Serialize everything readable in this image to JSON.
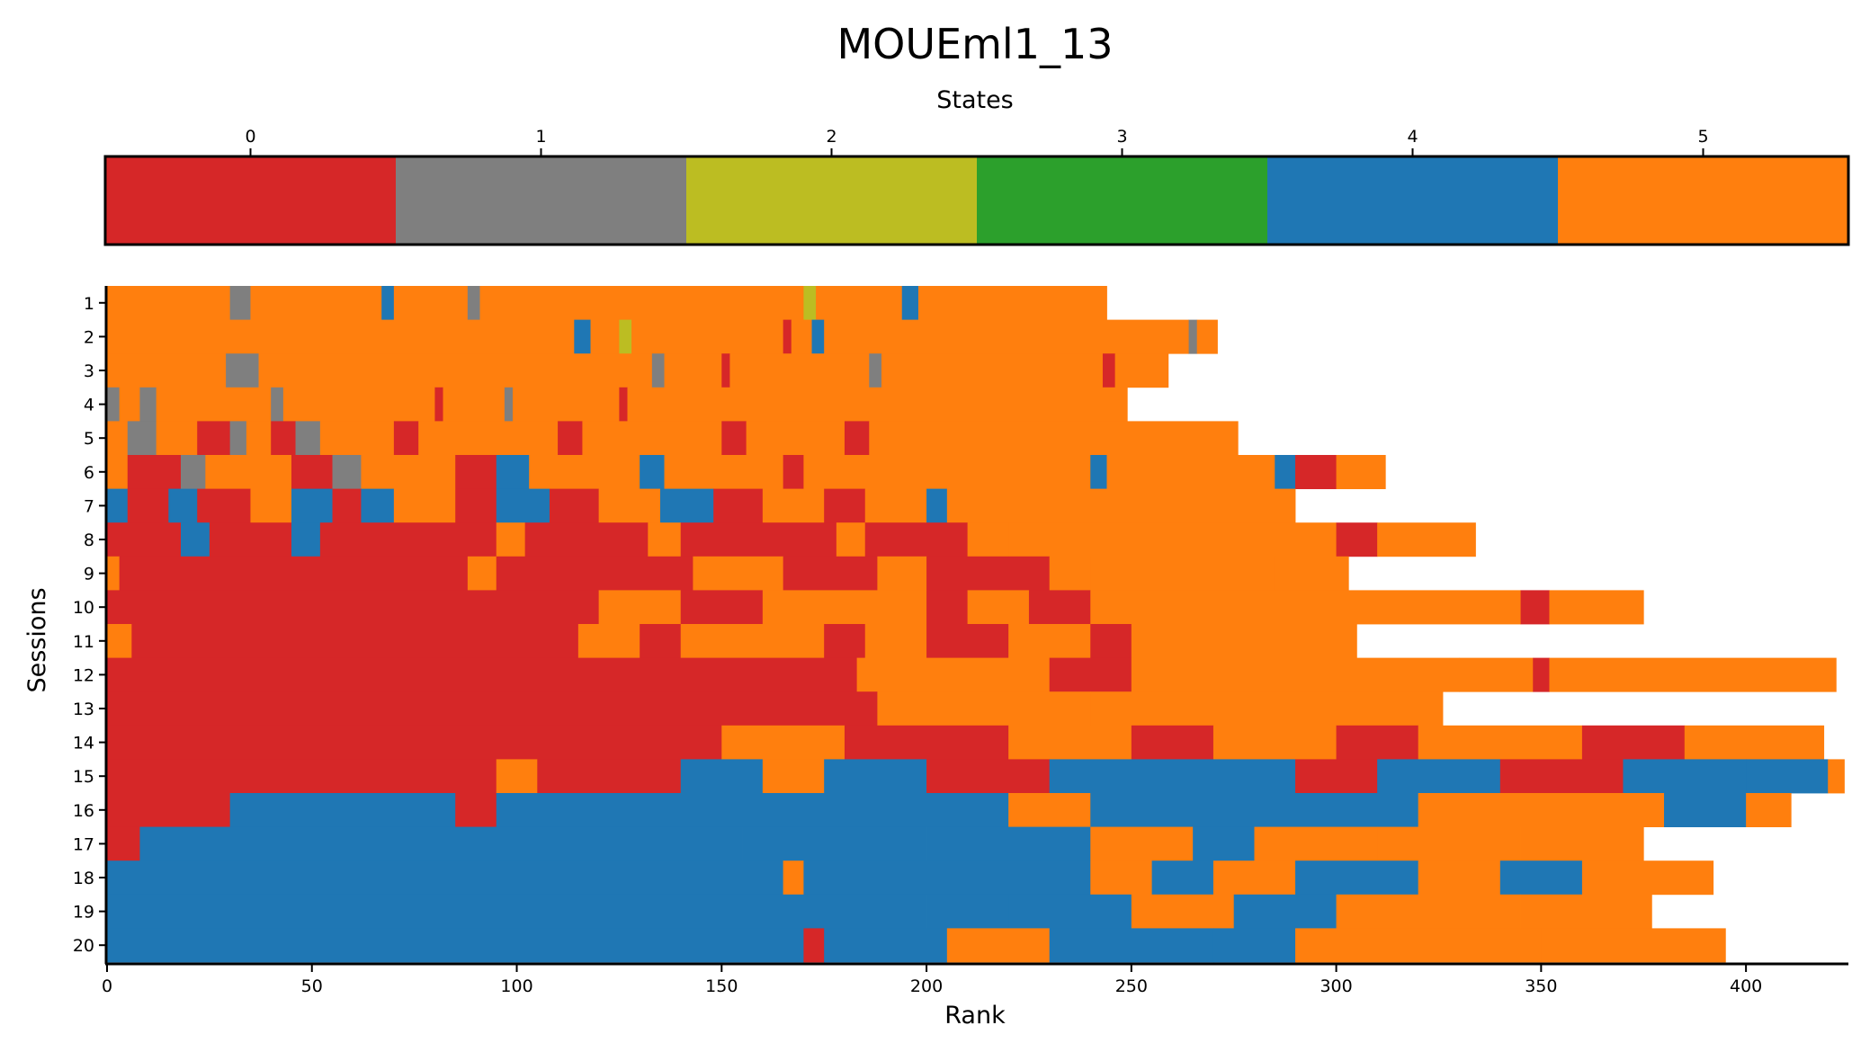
{
  "chart_data": {
    "type": "heatmap",
    "title": "MOUEml1_13",
    "xlabel": "Rank",
    "ylabel": "Sessions",
    "colorbar_label": "States",
    "xlim": [
      0,
      425
    ],
    "x_ticks": [
      0,
      50,
      100,
      150,
      200,
      250,
      300,
      350,
      400
    ],
    "states": [
      {
        "state": "0",
        "color": "#d62728"
      },
      {
        "state": "1",
        "color": "#7f7f7f"
      },
      {
        "state": "2",
        "color": "#bcbd22"
      },
      {
        "state": "3",
        "color": "#2ca02c"
      },
      {
        "state": "4",
        "color": "#1f77b4"
      },
      {
        "state": "5",
        "color": "#ff7f0e"
      }
    ],
    "sessions": [
      {
        "label": "1",
        "length": 244,
        "segments": [
          [
            0,
            30,
            5
          ],
          [
            30,
            35,
            1
          ],
          [
            35,
            67,
            5
          ],
          [
            67,
            70,
            4
          ],
          [
            70,
            88,
            5
          ],
          [
            88,
            91,
            1
          ],
          [
            91,
            170,
            5
          ],
          [
            170,
            173,
            2
          ],
          [
            173,
            194,
            5
          ],
          [
            194,
            198,
            4
          ],
          [
            198,
            244,
            5
          ]
        ]
      },
      {
        "label": "2",
        "length": 271,
        "segments": [
          [
            0,
            114,
            5
          ],
          [
            114,
            118,
            4
          ],
          [
            118,
            125,
            5
          ],
          [
            125,
            128,
            2
          ],
          [
            128,
            165,
            5
          ],
          [
            165,
            167,
            0
          ],
          [
            167,
            172,
            5
          ],
          [
            172,
            175,
            4
          ],
          [
            175,
            264,
            5
          ],
          [
            264,
            266,
            1
          ],
          [
            266,
            271,
            5
          ]
        ]
      },
      {
        "label": "3",
        "length": 259,
        "segments": [
          [
            0,
            29,
            5
          ],
          [
            29,
            37,
            1
          ],
          [
            37,
            133,
            5
          ],
          [
            133,
            136,
            1
          ],
          [
            136,
            150,
            5
          ],
          [
            150,
            152,
            0
          ],
          [
            152,
            186,
            5
          ],
          [
            186,
            189,
            1
          ],
          [
            189,
            243,
            5
          ],
          [
            243,
            246,
            0
          ],
          [
            246,
            259,
            5
          ]
        ]
      },
      {
        "label": "4",
        "length": 249,
        "segments": [
          [
            0,
            3,
            1
          ],
          [
            3,
            8,
            5
          ],
          [
            8,
            12,
            1
          ],
          [
            12,
            40,
            5
          ],
          [
            40,
            43,
            1
          ],
          [
            43,
            80,
            5
          ],
          [
            80,
            82,
            0
          ],
          [
            82,
            97,
            5
          ],
          [
            97,
            99,
            1
          ],
          [
            99,
            125,
            5
          ],
          [
            125,
            127,
            0
          ],
          [
            127,
            249,
            5
          ]
        ]
      },
      {
        "label": "5",
        "length": 276,
        "segments": [
          [
            0,
            5,
            5
          ],
          [
            5,
            12,
            1
          ],
          [
            12,
            22,
            5
          ],
          [
            22,
            30,
            0
          ],
          [
            30,
            34,
            1
          ],
          [
            34,
            40,
            5
          ],
          [
            40,
            46,
            0
          ],
          [
            46,
            52,
            1
          ],
          [
            52,
            70,
            5
          ],
          [
            70,
            76,
            0
          ],
          [
            76,
            110,
            5
          ],
          [
            110,
            116,
            0
          ],
          [
            116,
            150,
            5
          ],
          [
            150,
            156,
            0
          ],
          [
            156,
            180,
            5
          ],
          [
            180,
            186,
            0
          ],
          [
            186,
            276,
            5
          ]
        ]
      },
      {
        "label": "6",
        "length": 312,
        "segments": [
          [
            0,
            5,
            5
          ],
          [
            5,
            18,
            0
          ],
          [
            18,
            24,
            1
          ],
          [
            24,
            45,
            5
          ],
          [
            45,
            55,
            0
          ],
          [
            55,
            62,
            1
          ],
          [
            62,
            85,
            5
          ],
          [
            85,
            95,
            0
          ],
          [
            95,
            103,
            4
          ],
          [
            103,
            130,
            5
          ],
          [
            130,
            136,
            4
          ],
          [
            136,
            165,
            5
          ],
          [
            165,
            170,
            0
          ],
          [
            170,
            240,
            5
          ],
          [
            240,
            244,
            4
          ],
          [
            244,
            285,
            5
          ],
          [
            285,
            290,
            4
          ],
          [
            290,
            300,
            0
          ],
          [
            300,
            312,
            5
          ]
        ]
      },
      {
        "label": "7",
        "length": 290,
        "segments": [
          [
            0,
            5,
            4
          ],
          [
            5,
            15,
            0
          ],
          [
            15,
            22,
            4
          ],
          [
            22,
            35,
            0
          ],
          [
            35,
            45,
            5
          ],
          [
            45,
            55,
            4
          ],
          [
            55,
            62,
            0
          ],
          [
            62,
            70,
            4
          ],
          [
            70,
            85,
            5
          ],
          [
            85,
            95,
            0
          ],
          [
            95,
            108,
            4
          ],
          [
            108,
            120,
            0
          ],
          [
            120,
            135,
            5
          ],
          [
            135,
            148,
            4
          ],
          [
            148,
            160,
            0
          ],
          [
            160,
            175,
            5
          ],
          [
            175,
            185,
            0
          ],
          [
            185,
            200,
            5
          ],
          [
            200,
            205,
            4
          ],
          [
            205,
            290,
            5
          ]
        ]
      },
      {
        "label": "8",
        "length": 334,
        "segments": [
          [
            0,
            18,
            0
          ],
          [
            18,
            25,
            4
          ],
          [
            25,
            45,
            0
          ],
          [
            45,
            52,
            4
          ],
          [
            52,
            95,
            0
          ],
          [
            95,
            102,
            5
          ],
          [
            102,
            132,
            0
          ],
          [
            132,
            140,
            5
          ],
          [
            140,
            178,
            0
          ],
          [
            178,
            185,
            5
          ],
          [
            185,
            210,
            0
          ],
          [
            210,
            220,
            5
          ],
          [
            220,
            300,
            5
          ],
          [
            300,
            310,
            0
          ],
          [
            310,
            334,
            5
          ]
        ]
      },
      {
        "label": "9",
        "length": 303,
        "segments": [
          [
            0,
            3,
            5
          ],
          [
            3,
            88,
            0
          ],
          [
            88,
            95,
            5
          ],
          [
            95,
            143,
            0
          ],
          [
            143,
            165,
            5
          ],
          [
            165,
            188,
            0
          ],
          [
            188,
            200,
            5
          ],
          [
            200,
            230,
            0
          ],
          [
            230,
            240,
            5
          ],
          [
            240,
            285,
            5
          ],
          [
            285,
            303,
            5
          ]
        ]
      },
      {
        "label": "10",
        "length": 375,
        "segments": [
          [
            0,
            120,
            0
          ],
          [
            120,
            140,
            5
          ],
          [
            140,
            160,
            0
          ],
          [
            160,
            200,
            5
          ],
          [
            200,
            210,
            0
          ],
          [
            210,
            225,
            5
          ],
          [
            225,
            240,
            0
          ],
          [
            240,
            345,
            5
          ],
          [
            345,
            352,
            0
          ],
          [
            352,
            375,
            5
          ]
        ]
      },
      {
        "label": "11",
        "length": 305,
        "segments": [
          [
            0,
            6,
            5
          ],
          [
            6,
            115,
            0
          ],
          [
            115,
            130,
            5
          ],
          [
            130,
            140,
            0
          ],
          [
            140,
            175,
            5
          ],
          [
            175,
            185,
            0
          ],
          [
            185,
            200,
            5
          ],
          [
            200,
            220,
            0
          ],
          [
            220,
            240,
            5
          ],
          [
            240,
            250,
            0
          ],
          [
            250,
            305,
            5
          ]
        ]
      },
      {
        "label": "12",
        "length": 422,
        "segments": [
          [
            0,
            183,
            0
          ],
          [
            183,
            230,
            5
          ],
          [
            230,
            250,
            0
          ],
          [
            250,
            330,
            5
          ],
          [
            330,
            348,
            5
          ],
          [
            348,
            352,
            0
          ],
          [
            352,
            422,
            5
          ]
        ]
      },
      {
        "label": "13",
        "length": 326,
        "segments": [
          [
            0,
            188,
            0
          ],
          [
            188,
            240,
            5
          ],
          [
            240,
            255,
            5
          ],
          [
            255,
            326,
            5
          ]
        ]
      },
      {
        "label": "14",
        "length": 419,
        "segments": [
          [
            0,
            150,
            0
          ],
          [
            150,
            180,
            5
          ],
          [
            180,
            220,
            0
          ],
          [
            220,
            250,
            5
          ],
          [
            250,
            270,
            0
          ],
          [
            270,
            300,
            5
          ],
          [
            300,
            320,
            0
          ],
          [
            320,
            360,
            5
          ],
          [
            360,
            385,
            0
          ],
          [
            385,
            419,
            5
          ]
        ]
      },
      {
        "label": "15",
        "length": 424,
        "segments": [
          [
            0,
            95,
            0
          ],
          [
            95,
            105,
            5
          ],
          [
            105,
            140,
            0
          ],
          [
            140,
            160,
            4
          ],
          [
            160,
            175,
            5
          ],
          [
            175,
            200,
            4
          ],
          [
            200,
            230,
            0
          ],
          [
            230,
            290,
            4
          ],
          [
            290,
            310,
            0
          ],
          [
            310,
            340,
            4
          ],
          [
            340,
            370,
            0
          ],
          [
            370,
            400,
            4
          ],
          [
            400,
            420,
            4
          ],
          [
            420,
            424,
            5
          ]
        ]
      },
      {
        "label": "16",
        "length": 411,
        "segments": [
          [
            0,
            30,
            0
          ],
          [
            30,
            85,
            4
          ],
          [
            85,
            95,
            0
          ],
          [
            95,
            220,
            4
          ],
          [
            220,
            240,
            5
          ],
          [
            240,
            300,
            4
          ],
          [
            300,
            320,
            4
          ],
          [
            320,
            380,
            5
          ],
          [
            380,
            400,
            4
          ],
          [
            400,
            411,
            5
          ]
        ]
      },
      {
        "label": "17",
        "length": 375,
        "segments": [
          [
            0,
            8,
            0
          ],
          [
            8,
            155,
            4
          ],
          [
            155,
            200,
            4
          ],
          [
            200,
            240,
            4
          ],
          [
            240,
            265,
            5
          ],
          [
            265,
            280,
            4
          ],
          [
            280,
            310,
            5
          ],
          [
            310,
            345,
            5
          ],
          [
            345,
            375,
            5
          ]
        ]
      },
      {
        "label": "18",
        "length": 392,
        "segments": [
          [
            0,
            165,
            4
          ],
          [
            165,
            170,
            5
          ],
          [
            170,
            240,
            4
          ],
          [
            240,
            255,
            5
          ],
          [
            255,
            270,
            4
          ],
          [
            270,
            290,
            5
          ],
          [
            290,
            320,
            4
          ],
          [
            320,
            340,
            5
          ],
          [
            340,
            360,
            4
          ],
          [
            360,
            392,
            5
          ]
        ]
      },
      {
        "label": "19",
        "length": 377,
        "segments": [
          [
            0,
            200,
            4
          ],
          [
            200,
            220,
            4
          ],
          [
            220,
            250,
            4
          ],
          [
            250,
            275,
            5
          ],
          [
            275,
            300,
            4
          ],
          [
            300,
            345,
            5
          ],
          [
            345,
            377,
            5
          ]
        ]
      },
      {
        "label": "20",
        "length": 395,
        "segments": [
          [
            0,
            170,
            4
          ],
          [
            170,
            175,
            0
          ],
          [
            175,
            205,
            4
          ],
          [
            205,
            230,
            5
          ],
          [
            230,
            270,
            4
          ],
          [
            270,
            290,
            4
          ],
          [
            290,
            350,
            5
          ],
          [
            350,
            395,
            5
          ]
        ]
      }
    ]
  }
}
